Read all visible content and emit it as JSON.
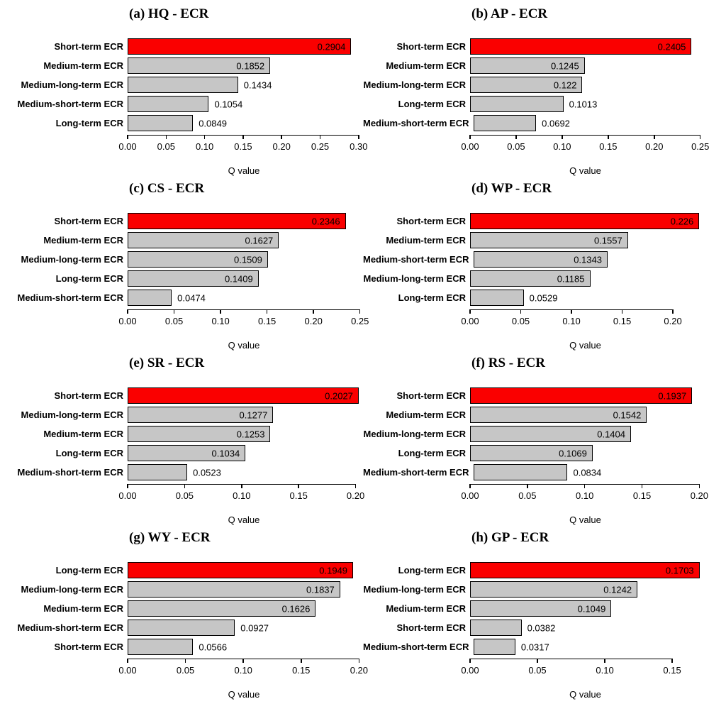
{
  "figure": {
    "xlabel": "Q value",
    "colors": {
      "highlight_bar": "#fa0000",
      "default_bar": "#c6c6c6",
      "bar_border": "#000000",
      "axis": "#000000",
      "text": "#000000",
      "background": "#ffffff"
    }
  },
  "chart_data": [
    {
      "id": "a",
      "type": "bar",
      "orientation": "horizontal",
      "title": "(a) HQ - ECR",
      "xlabel": "Q value",
      "categories": [
        "Short-term ECR",
        "Medium-term ECR",
        "Medium-long-term ECR",
        "Medium-short-term ECR",
        "Long-term ECR"
      ],
      "values": [
        0.2904,
        0.1852,
        0.1434,
        0.1054,
        0.0849
      ],
      "value_labels": [
        "0.2904",
        "0.1852",
        "0.1434",
        "0.1054",
        "0.0849"
      ],
      "highlight_index": 0,
      "xticks": [
        "0.00",
        "0.05",
        "0.10",
        "0.15",
        "0.20",
        "0.25",
        "0.30"
      ],
      "xlim": [
        0,
        0.302
      ],
      "grid": false,
      "legend": false
    },
    {
      "id": "b",
      "type": "bar",
      "orientation": "horizontal",
      "title": "(b) AP - ECR",
      "xlabel": "Q value",
      "categories": [
        "Short-term ECR",
        "Medium-term ECR",
        "Medium-long-term ECR",
        "Long-term ECR",
        "Medium-short-term ECR"
      ],
      "values": [
        0.2405,
        0.1245,
        0.122,
        0.1013,
        0.0692
      ],
      "value_labels": [
        "0.2405",
        "0.1245",
        "0.122",
        "0.1013",
        "0.0692"
      ],
      "highlight_index": 0,
      "xticks": [
        "0.00",
        "0.05",
        "0.10",
        "0.15",
        "0.20",
        "0.25"
      ],
      "xlim": [
        0,
        0.2502
      ],
      "grid": false,
      "legend": false
    },
    {
      "id": "c",
      "type": "bar",
      "orientation": "horizontal",
      "title": "(c) CS - ECR",
      "xlabel": "Q value",
      "categories": [
        "Short-term ECR",
        "Medium-term ECR",
        "Medium-long-term ECR",
        "Long-term ECR",
        "Medium-short-term ECR"
      ],
      "values": [
        0.2346,
        0.1627,
        0.1509,
        0.1409,
        0.0474
      ],
      "value_labels": [
        "0.2346",
        "0.1627",
        "0.1509",
        "0.1409",
        "0.0474"
      ],
      "highlight_index": 0,
      "xticks": [
        "0.00",
        "0.05",
        "0.10",
        "0.15",
        "0.20",
        "0.25"
      ],
      "xlim": [
        0,
        0.2502
      ],
      "grid": false,
      "legend": false
    },
    {
      "id": "d",
      "type": "bar",
      "orientation": "horizontal",
      "title": "(d) WP - ECR",
      "xlabel": "Q value",
      "categories": [
        "Short-term ECR",
        "Medium-term ECR",
        "Medium-short-term ECR",
        "Medium-long-term ECR",
        "Long-term ECR"
      ],
      "values": [
        0.226,
        0.1557,
        0.1343,
        0.1185,
        0.0529
      ],
      "value_labels": [
        "0.226",
        "0.1557",
        "0.1343",
        "0.1185",
        "0.0529"
      ],
      "highlight_index": 0,
      "xticks": [
        "0.00",
        "0.05",
        "0.10",
        "0.15",
        "0.20"
      ],
      "xlim": [
        0,
        0.2272
      ],
      "grid": false,
      "legend": false
    },
    {
      "id": "e",
      "type": "bar",
      "orientation": "horizontal",
      "title": "(e) SR - ECR",
      "xlabel": "Q value",
      "categories": [
        "Short-term ECR",
        "Medium-long-term ECR",
        "Medium-term ECR",
        "Long-term ECR",
        "Medium-short-term ECR"
      ],
      "values": [
        0.2027,
        0.1277,
        0.1253,
        0.1034,
        0.0523
      ],
      "value_labels": [
        "0.2027",
        "0.1277",
        "0.1253",
        "0.1034",
        "0.0523"
      ],
      "highlight_index": 0,
      "xticks": [
        "0.00",
        "0.05",
        "0.10",
        "0.15",
        "0.20"
      ],
      "xlim": [
        0,
        0.204
      ],
      "grid": false,
      "legend": false
    },
    {
      "id": "f",
      "type": "bar",
      "orientation": "horizontal",
      "title": "(f) RS - ECR",
      "xlabel": "Q value",
      "categories": [
        "Short-term ECR",
        "Medium-term ECR",
        "Medium-long-term ECR",
        "Long-term ECR",
        "Medium-short-term ECR"
      ],
      "values": [
        0.1937,
        0.1542,
        0.1404,
        0.1069,
        0.0834
      ],
      "value_labels": [
        "0.1937",
        "0.1542",
        "0.1404",
        "0.1069",
        "0.0834"
      ],
      "highlight_index": 0,
      "xticks": [
        "0.00",
        "0.05",
        "0.10",
        "0.15",
        "0.20"
      ],
      "xlim": [
        0,
        0.201
      ],
      "grid": false,
      "legend": false
    },
    {
      "id": "g",
      "type": "bar",
      "orientation": "horizontal",
      "title": "(g) WY - ECR",
      "xlabel": "Q value",
      "categories": [
        "Long-term ECR",
        "Medium-long-term ECR",
        "Medium-term ECR",
        "Medium-short-term ECR",
        "Short-term ECR"
      ],
      "values": [
        0.1949,
        0.1837,
        0.1626,
        0.0927,
        0.0566
      ],
      "value_labels": [
        "0.1949",
        "0.1837",
        "0.1626",
        "0.0927",
        "0.0566"
      ],
      "highlight_index": 0,
      "xticks": [
        "0.00",
        "0.05",
        "0.10",
        "0.15",
        "0.20"
      ],
      "xlim": [
        0,
        0.201
      ],
      "grid": false,
      "legend": false
    },
    {
      "id": "h",
      "type": "bar",
      "orientation": "horizontal",
      "title": "(h) GP - ECR",
      "xlabel": "Q value",
      "categories": [
        "Long-term ECR",
        "Medium-long-term ECR",
        "Medium-term ECR",
        "Short-term ECR",
        "Medium-short-term ECR"
      ],
      "values": [
        0.1703,
        0.1242,
        0.1049,
        0.0382,
        0.0317
      ],
      "value_labels": [
        "0.1703",
        "0.1242",
        "0.1049",
        "0.0382",
        "0.0317"
      ],
      "highlight_index": 0,
      "xticks": [
        "0.00",
        "0.05",
        "0.10",
        "0.15"
      ],
      "xlim": [
        0,
        0.171
      ],
      "grid": false,
      "legend": false
    }
  ]
}
